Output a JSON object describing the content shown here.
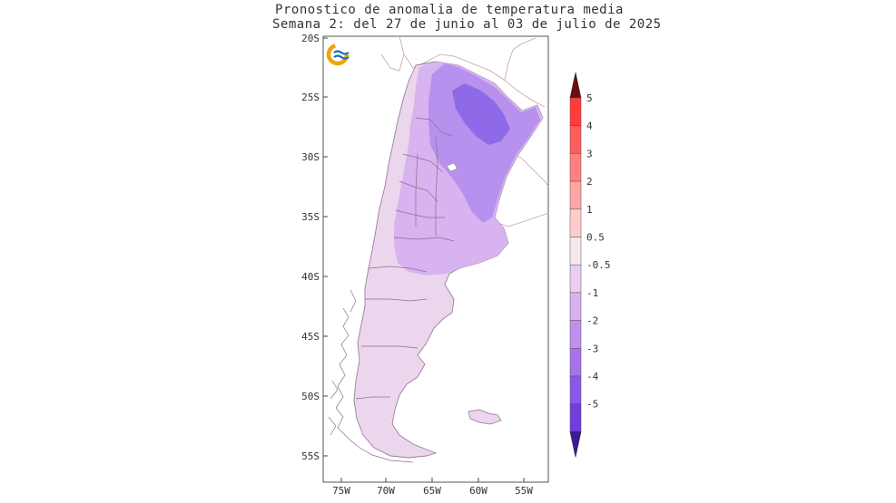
{
  "title": {
    "line1": "Pronostico de anomalia de temperatura media",
    "line2": "Semana 2: del 27 de junio al 03 de julio de 2025"
  },
  "axes": {
    "lat_labels": [
      "20S",
      "25S",
      "30S",
      "35S",
      "40S",
      "45S",
      "50S",
      "55S"
    ],
    "lon_labels": [
      "75W",
      "70W",
      "65W",
      "60W",
      "55W"
    ]
  },
  "colorbar": {
    "labels": [
      "5",
      "4",
      "3",
      "2",
      "1",
      "0.5",
      "-0.5",
      "-1",
      "-2",
      "-3",
      "-4",
      "-5"
    ],
    "colors": [
      "#ff3b3b",
      "#ff5c5c",
      "#ff8080",
      "#ffa6a6",
      "#ffcccc",
      "#f6e6f2",
      "#ebcdf0",
      "#d9b0f0",
      "#c190ee",
      "#a673ea",
      "#8a58e6",
      "#6e3fdc"
    ],
    "top_arrow_color": "#6b0d0d",
    "bottom_arrow_color": "#3a1a9a"
  },
  "logo": {
    "name": "logo-icon"
  }
}
